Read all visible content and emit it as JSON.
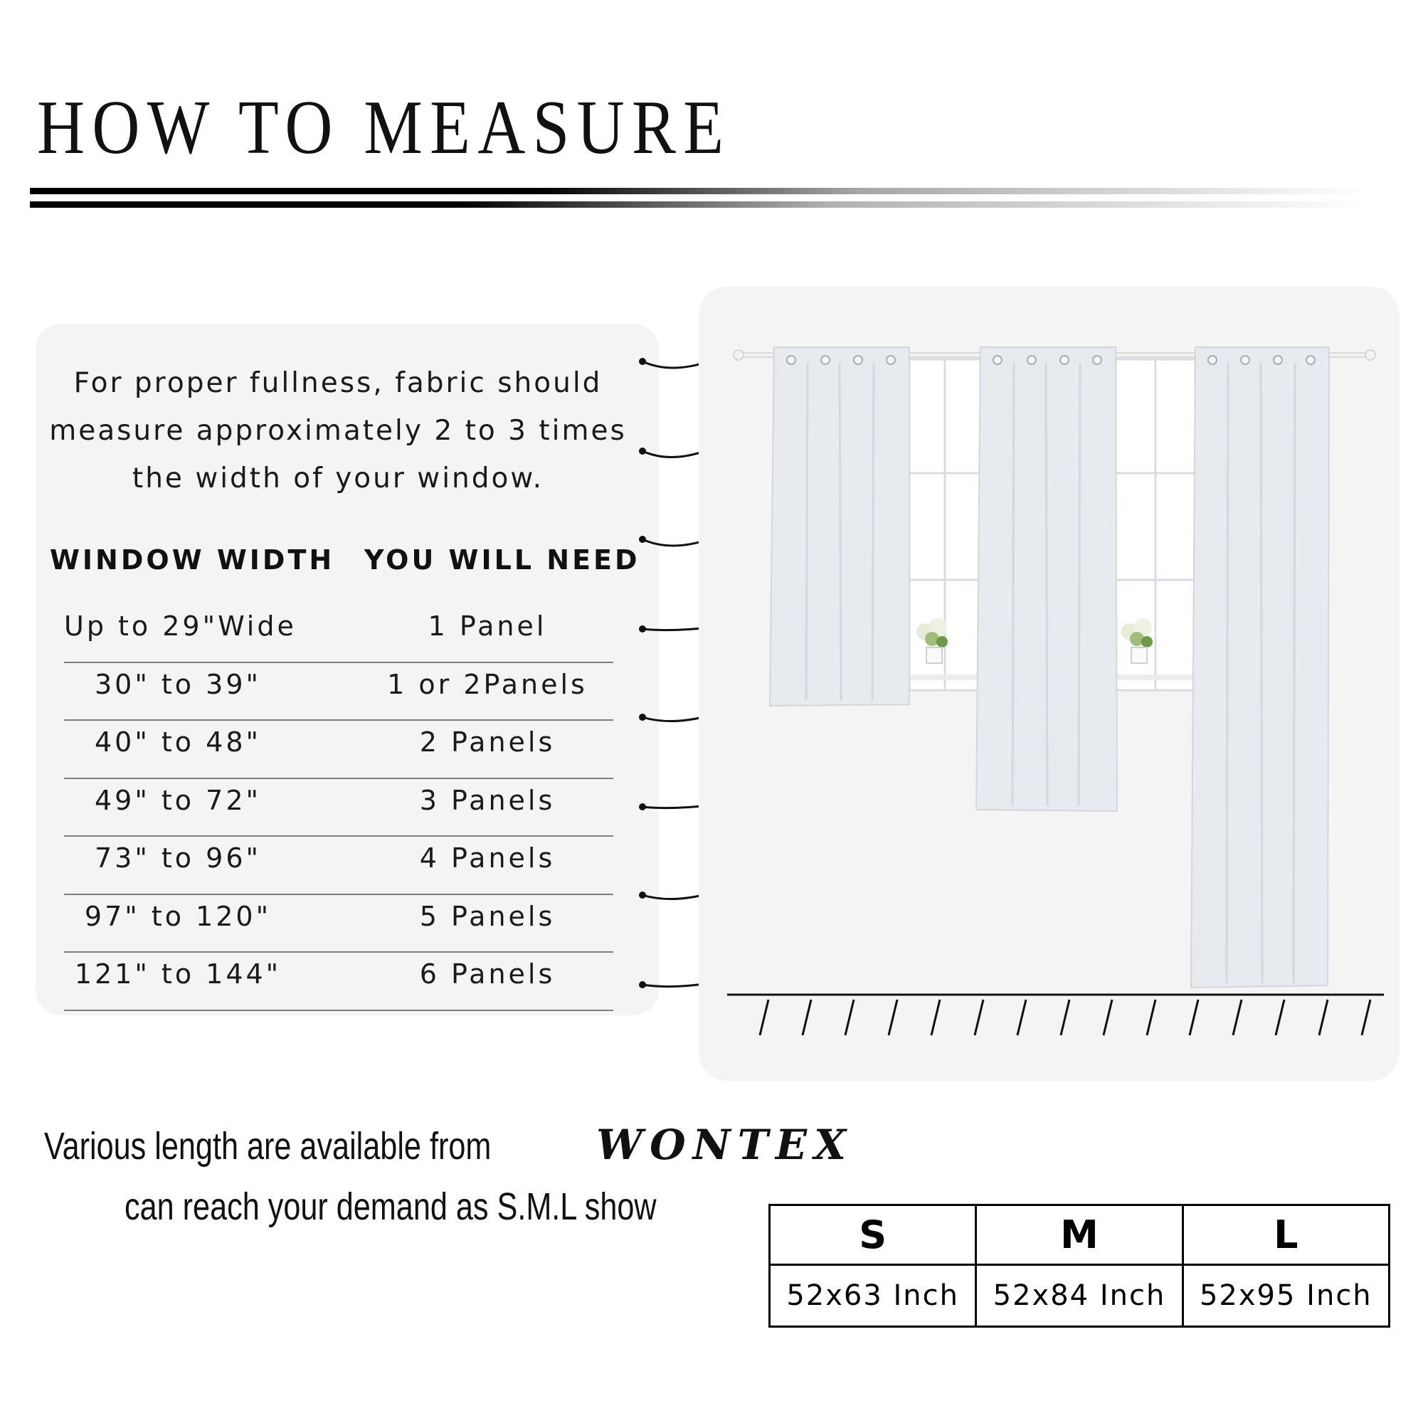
{
  "title": "HOW TO MEASURE",
  "guide": {
    "intro_lines": [
      "For proper fullness, fabric should",
      "measure approximately 2 to 3 times",
      "the width of your window."
    ],
    "header_width": "WINDOW WIDTH",
    "header_need": "YOU WILL NEED",
    "rows": [
      {
        "width": "Up to 29\"Wide",
        "need": "1 Panel"
      },
      {
        "width": "30\" to 39\"",
        "need": "1 or 2Panels"
      },
      {
        "width": "40\" to 48\"",
        "need": "2 Panels"
      },
      {
        "width": "49\" to 72\"",
        "need": "3 Panels"
      },
      {
        "width": "73\" to 96\"",
        "need": "4 Panels"
      },
      {
        "width": "97\" to 120\"",
        "need": "5 Panels"
      },
      {
        "width": "121\" to 144\"",
        "need": "6 Panels"
      }
    ]
  },
  "tagline": {
    "line1": "Various length are available  from",
    "brand": "WONTEX",
    "line2": "can reach your demand as S.M.L show"
  },
  "sizes": {
    "headers": [
      "S",
      "M",
      "L"
    ],
    "values": [
      "52x63 Inch",
      "52x84 Inch",
      "52x95 Inch"
    ]
  },
  "colors": {
    "card_bg": "#f4f4f4",
    "curtain": "#e7eaee",
    "rule": "#000000"
  }
}
